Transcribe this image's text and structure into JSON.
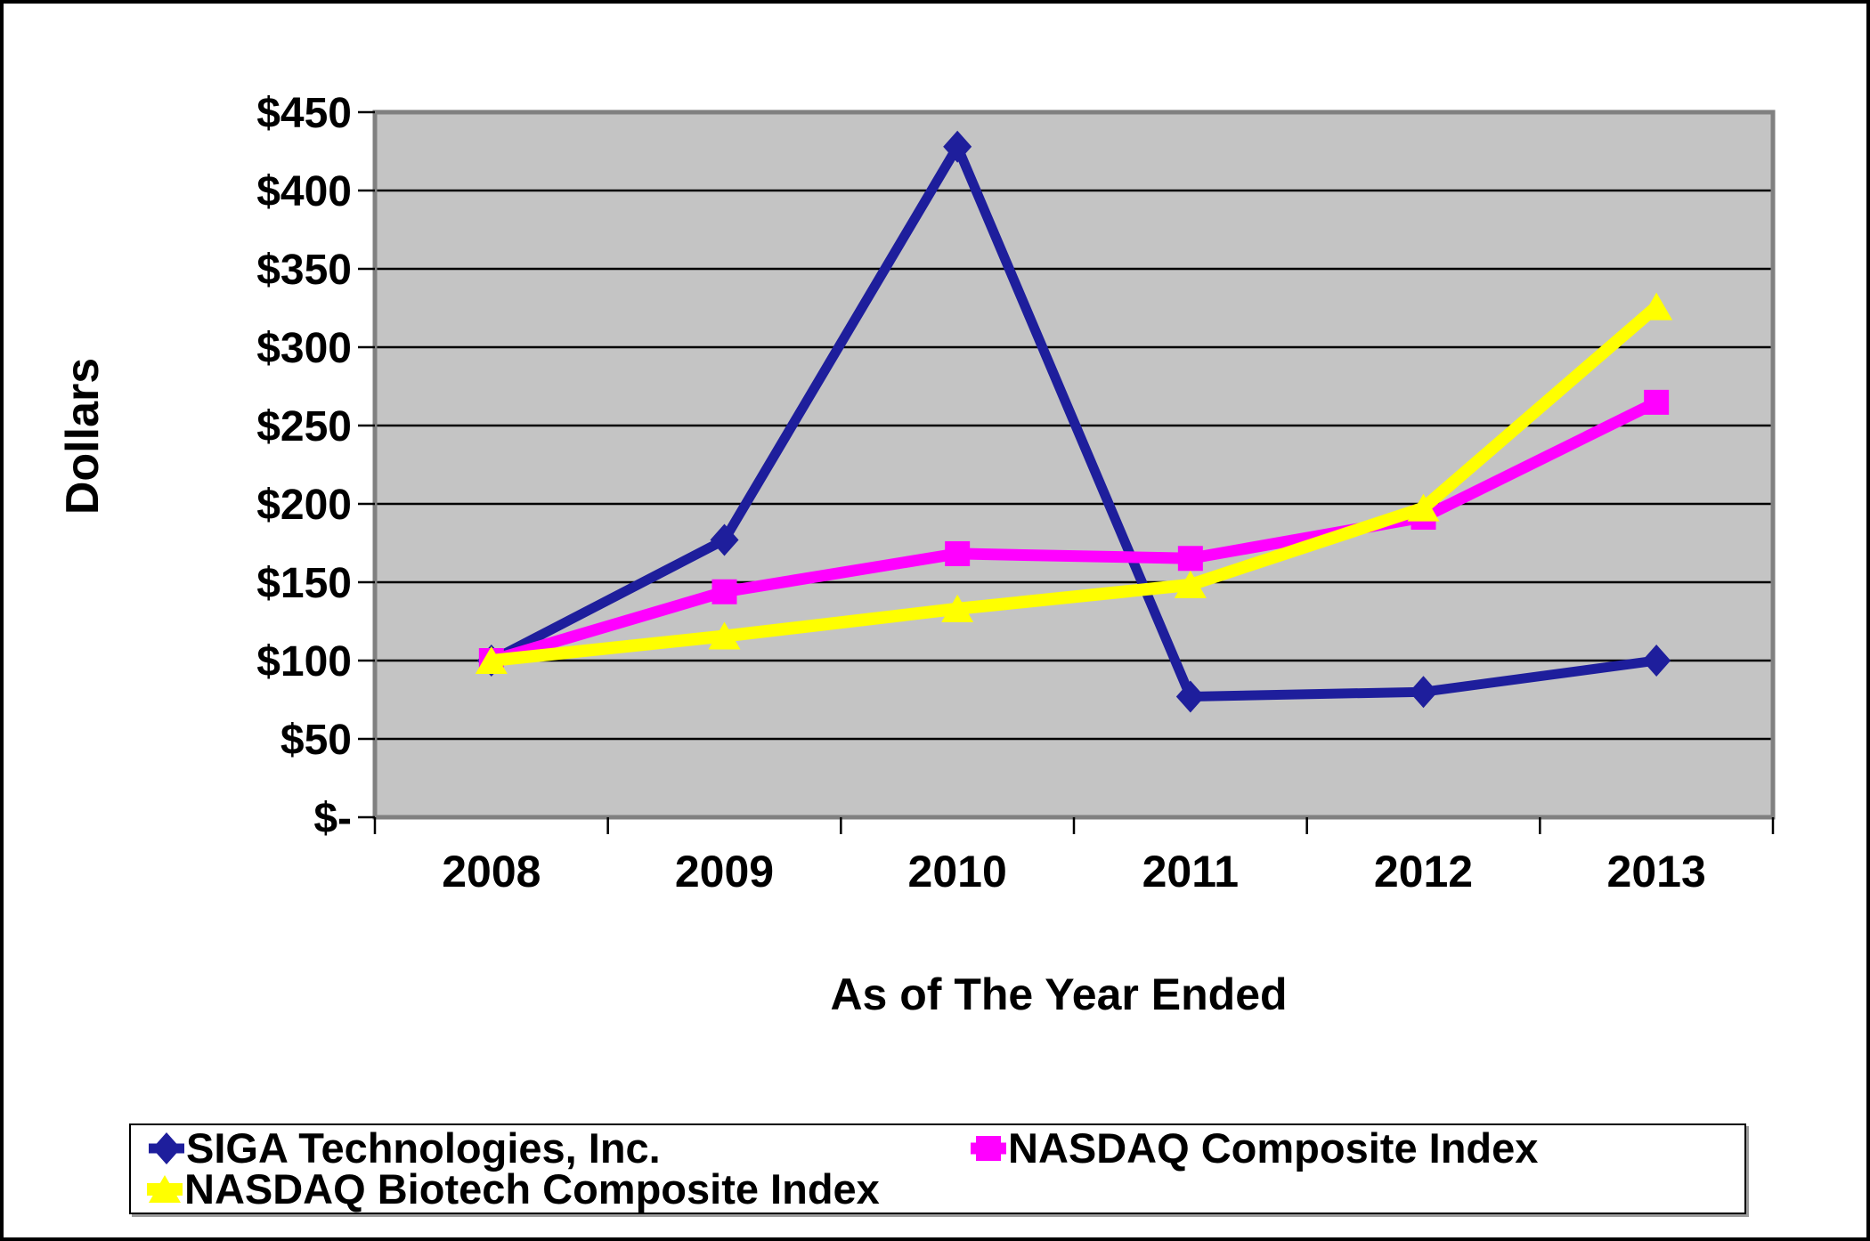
{
  "chart_data": {
    "type": "line",
    "title": "",
    "xlabel": "As of The Year Ended",
    "ylabel": "Dollars",
    "categories": [
      "2008",
      "2009",
      "2010",
      "2011",
      "2012",
      "2013"
    ],
    "y_tick_labels": [
      "$-",
      "$50",
      "$100",
      "$150",
      "$200",
      "$250",
      "$300",
      "$350",
      "$400",
      "$450"
    ],
    "ylim": [
      0,
      450
    ],
    "y_step": 50,
    "grid": true,
    "legend_position": "bottom",
    "plot_bg_color": "#C4C4C4",
    "plot_border_color": "#808080",
    "gridline_color": "#000000",
    "series": [
      {
        "name": "SIGA Technologies, Inc.",
        "color": "#1E1E9C",
        "marker": "diamond",
        "line_width": 11,
        "values": [
          100,
          177,
          428,
          77,
          80,
          100
        ]
      },
      {
        "name": "NASDAQ Composite Index",
        "color": "#FF00FF",
        "marker": "square",
        "line_width": 13,
        "values": [
          100,
          143.89,
          168.22,
          165.19,
          191.47,
          264.84
        ]
      },
      {
        "name": "NASDAQ Biotech Composite Index",
        "color": "#FFFF00",
        "marker": "triangle",
        "line_width": 14,
        "values": [
          100,
          115.63,
          133.05,
          148.36,
          197.37,
          325.76
        ]
      }
    ]
  }
}
